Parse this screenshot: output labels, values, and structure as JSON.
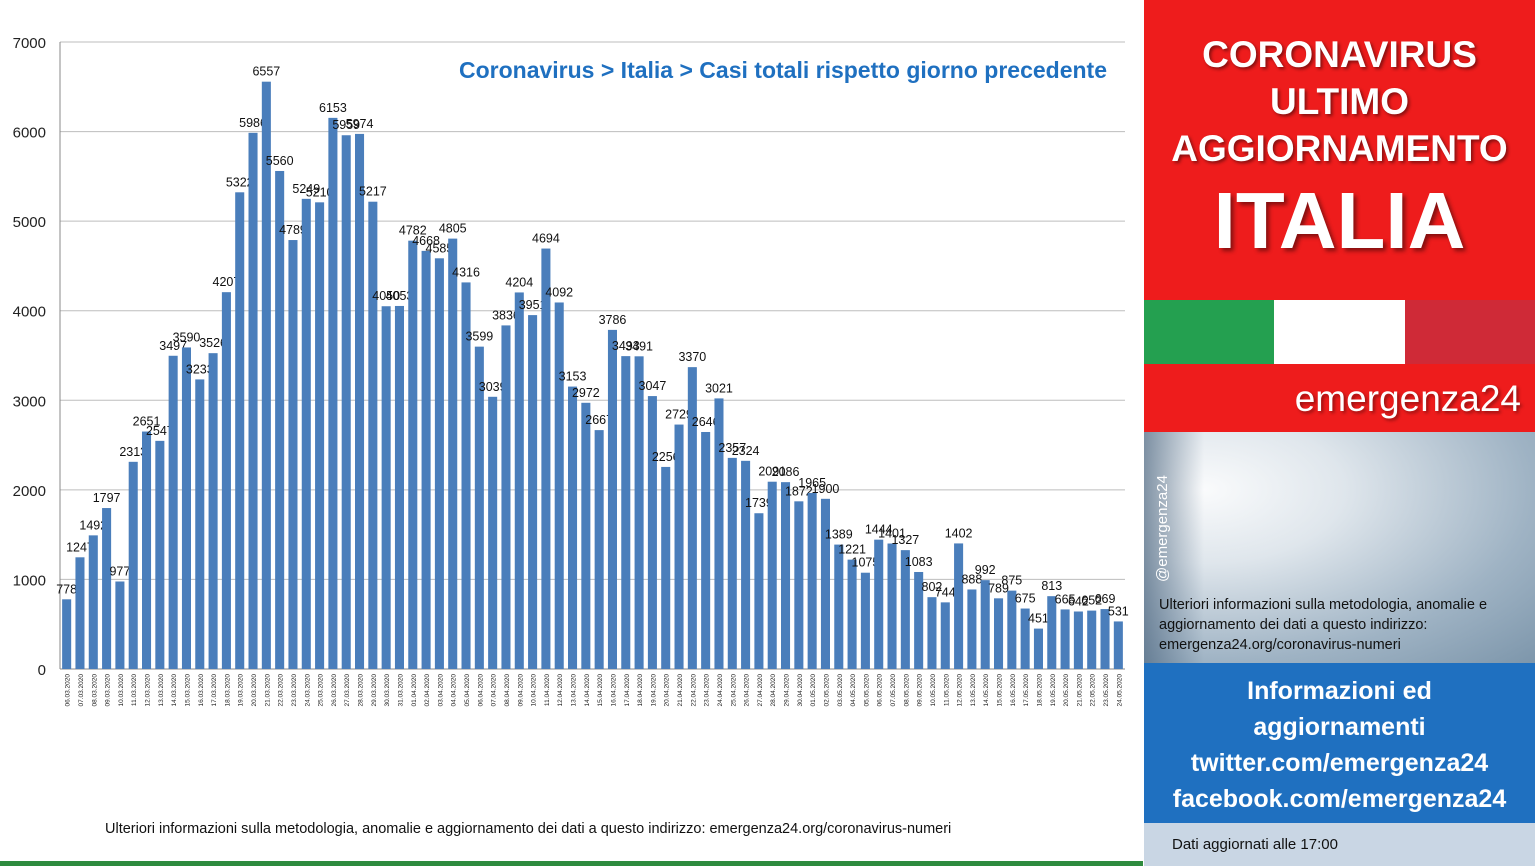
{
  "chart_data": {
    "type": "bar",
    "title": "Coronavirus > Italia > Casi totali rispetto giorno precedente",
    "ylim": [
      0,
      7000
    ],
    "yticks": [
      0,
      1000,
      2000,
      3000,
      4000,
      5000,
      6000,
      7000
    ],
    "grid": true,
    "bar_color": "#4a7ebb",
    "title_color": "#1f70c0",
    "categories": [
      "06.03.2020",
      "07.03.2020",
      "08.03.2020",
      "09.03.2020",
      "10.03.2020",
      "11.03.2020",
      "12.03.2020",
      "13.03.2020",
      "14.03.2020",
      "15.03.2020",
      "16.03.2020",
      "17.03.2020",
      "18.03.2020",
      "19.03.2020",
      "20.03.2020",
      "21.03.2020",
      "22.03.2020",
      "23.03.2020",
      "24.03.2020",
      "25.03.2020",
      "26.03.2020",
      "27.03.2020",
      "28.03.2020",
      "29.03.2020",
      "30.03.2020",
      "31.03.2020",
      "01.04.2020",
      "02.04.2020",
      "03.04.2020",
      "04.04.2020",
      "05.04.2020",
      "06.04.2020",
      "07.04.2020",
      "08.04.2020",
      "09.04.2020",
      "10.04.2020",
      "11.04.2020",
      "12.04.2020",
      "13.04.2020",
      "14.04.2020",
      "15.04.2020",
      "16.04.2020",
      "17.04.2020",
      "18.04.2020",
      "19.04.2020",
      "20.04.2020",
      "21.04.2020",
      "22.04.2020",
      "23.04.2020",
      "24.04.2020",
      "25.04.2020",
      "26.04.2020",
      "27.04.2020",
      "28.04.2020",
      "29.04.2020",
      "30.04.2020",
      "01.05.2020",
      "02.05.2020",
      "03.05.2020",
      "04.05.2020",
      "05.05.2020",
      "06.05.2020",
      "07.05.2020",
      "08.05.2020",
      "09.05.2020",
      "10.05.2020",
      "11.05.2020",
      "12.05.2020",
      "13.05.2020",
      "14.05.2020",
      "15.05.2020",
      "16.05.2020",
      "17.05.2020",
      "18.05.2020",
      "19.05.2020",
      "20.05.2020",
      "21.05.2020",
      "22.05.2020",
      "23.05.2020",
      "24.05.2020"
    ],
    "values": [
      778,
      1247,
      1492,
      1797,
      977,
      2313,
      2651,
      2547,
      3497,
      3590,
      3233,
      3526,
      4207,
      5322,
      5986,
      6557,
      5560,
      4789,
      5249,
      5210,
      6153,
      5959,
      5974,
      5217,
      4050,
      4053,
      4782,
      4668,
      4585,
      4805,
      4316,
      3599,
      3039,
      3836,
      4204,
      3951,
      4694,
      4092,
      3153,
      2972,
      2667,
      3786,
      3493,
      3491,
      3047,
      2256,
      2729,
      3370,
      2646,
      3021,
      2357,
      2324,
      1739,
      2091,
      2086,
      1872,
      1965,
      1900,
      1389,
      1221,
      1075,
      1444,
      1401,
      1327,
      1083,
      802,
      744,
      1402,
      888,
      992,
      789,
      875,
      675,
      451,
      813,
      665,
      642,
      652,
      669,
      531
    ],
    "footnote": "Ulteriori informazioni sulla metodologia, anomalie e aggiornamento dei dati a questo indirizzo: emergenza24.org/coronavirus-numeri"
  },
  "side": {
    "header_lines": [
      "CORONAVIRUS",
      "ULTIMO",
      "AGGIORNAMENTO"
    ],
    "country": "ITALIA",
    "flag_colors": [
      "#24a050",
      "#ffffff",
      "#cf2a37"
    ],
    "brand": "emergenza24",
    "handle": "@emergenza24",
    "info_text": "Ulteriori informazioni sulla metodologia, anomalie e aggiornamento dei dati a questo indirizzo: emergenza24.org/coronavirus-numeri",
    "blue_lines": [
      "Informazioni ed",
      "aggiornamenti",
      "twitter.com/emergenza24",
      "facebook.com/emergenza24"
    ],
    "updated": "Dati aggiornati alle 17:00"
  }
}
